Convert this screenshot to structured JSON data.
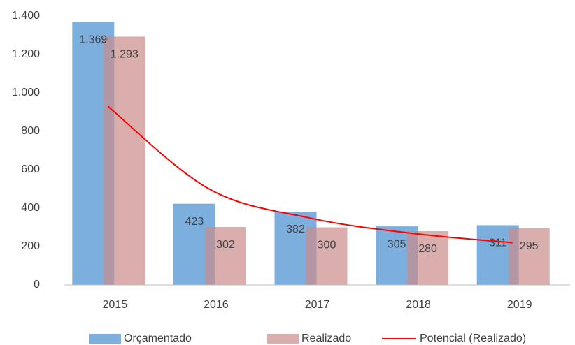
{
  "chart_data": {
    "type": "bar",
    "categories": [
      "2015",
      "2016",
      "2017",
      "2018",
      "2019"
    ],
    "series": [
      {
        "name": "Orçamentado",
        "color": "#5b9bd5",
        "values": [
          1369,
          423,
          382,
          305,
          311
        ],
        "value_labels": [
          "1.369",
          "423",
          "382",
          "305",
          "311"
        ]
      },
      {
        "name": "Realizado",
        "color": "#c98b8a",
        "values": [
          1293,
          302,
          300,
          280,
          295
        ],
        "value_labels": [
          "1.293",
          "302",
          "300",
          "280",
          "295"
        ]
      },
      {
        "name": "Potencial (Realizado)",
        "color": "#ff0000",
        "type": "line",
        "values": [
          930,
          500,
          348,
          269,
          220
        ]
      }
    ],
    "ylim": [
      0,
      1400
    ],
    "yticks": [
      0,
      200,
      400,
      600,
      800,
      {
        "value": 1000,
        "label": "1.000"
      },
      {
        "value": 1200,
        "label": "1.200"
      },
      {
        "value": 1400,
        "label": "1.400"
      }
    ],
    "grid": false,
    "legend": "bottom"
  }
}
